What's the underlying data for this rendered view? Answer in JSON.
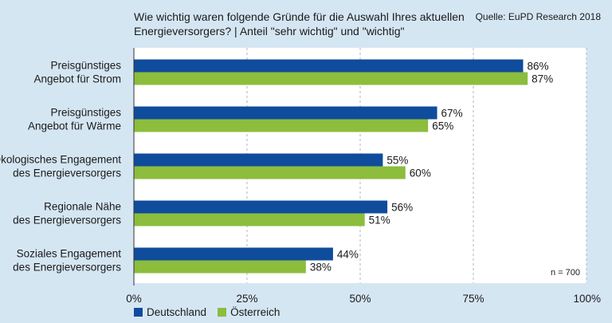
{
  "chart_data": {
    "type": "bar",
    "orientation": "horizontal",
    "title": "Wie wichtig waren folgende Gründe für die Auswahl Ihres aktuellen Energieversorgers? | Anteil \"sehr wichtig\" und \"wichtig\"",
    "source": "Quelle: EuPD Research 2018",
    "note": "n = 700",
    "categories": [
      [
        "Preisgünstiges",
        "Angebot für Strom"
      ],
      [
        "Preisgünstiges",
        "Angebot für Wärme"
      ],
      [
        "Ökologisches Engagement",
        "des Energieversorgers"
      ],
      [
        "Regionale Nähe",
        "des Energieversorgers"
      ],
      [
        "Soziales Engagement",
        "des Energieversorgers"
      ]
    ],
    "series": [
      {
        "name": "Deutschland",
        "color": "#0f4c9c",
        "values": [
          86,
          67,
          55,
          56,
          44
        ]
      },
      {
        "name": "Österreich",
        "color": "#8cbd3d",
        "values": [
          87,
          65,
          60,
          51,
          38
        ]
      }
    ],
    "value_suffix": "%",
    "xlim": [
      0,
      100
    ],
    "xticks": [
      0,
      25,
      50,
      75,
      100
    ],
    "xtick_labels": [
      "0%",
      "25%",
      "50%",
      "75%",
      "100%"
    ],
    "grid": true,
    "legend_position": "bottom-left"
  }
}
